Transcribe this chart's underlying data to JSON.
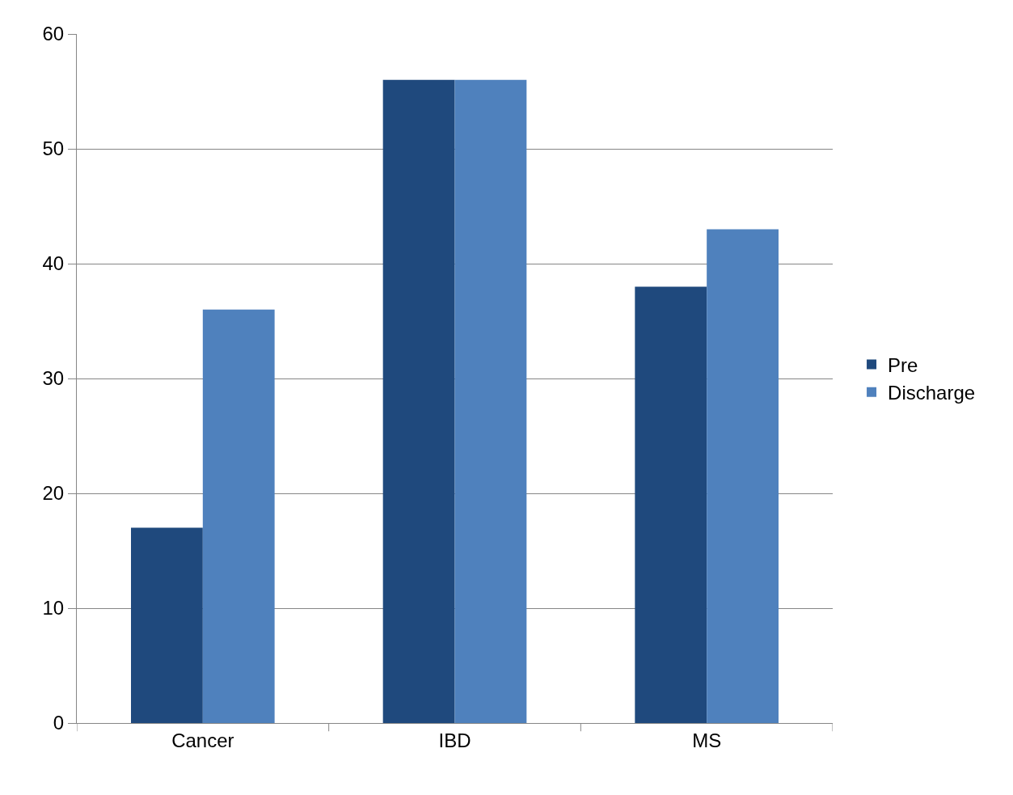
{
  "chart_data": {
    "type": "bar",
    "categories": [
      "Cancer",
      "IBD",
      "MS"
    ],
    "series": [
      {
        "name": "Pre",
        "color": "#1f497d",
        "values": [
          17,
          56,
          38
        ]
      },
      {
        "name": "Discharge",
        "color": "#4f81bd",
        "values": [
          36,
          56,
          43
        ]
      }
    ],
    "ylim": [
      0,
      60
    ],
    "yticks": [
      0,
      10,
      20,
      30,
      40,
      50,
      60
    ],
    "grid": "y",
    "legend": "right"
  }
}
